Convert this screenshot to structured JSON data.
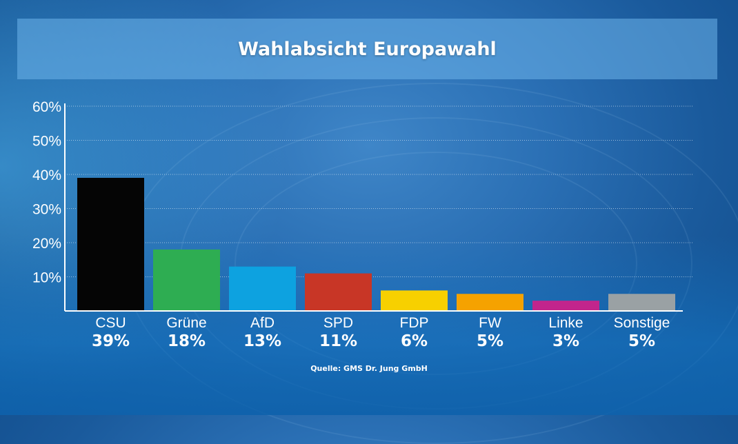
{
  "title": "Wahlabsicht Europawahl",
  "source": "Quelle: GMS Dr. Jung GmbH",
  "chart_data": {
    "type": "bar",
    "title": "Wahlabsicht Europawahl",
    "xlabel": "",
    "ylabel": "",
    "ylim": [
      0,
      60
    ],
    "yticks": [
      10,
      20,
      30,
      40,
      50,
      60
    ],
    "ytick_labels": [
      "10%",
      "20%",
      "30%",
      "40%",
      "50%",
      "60%"
    ],
    "grid": true,
    "legend": "none",
    "categories": [
      "CSU",
      "Grüne",
      "AfD",
      "SPD",
      "FDP",
      "FW",
      "Linke",
      "Sonstige"
    ],
    "values": [
      39,
      18,
      13,
      11,
      6,
      5,
      3,
      5
    ],
    "value_labels": [
      "39%",
      "18%",
      "13%",
      "11%",
      "6%",
      "5%",
      "3%",
      "5%"
    ],
    "colors": [
      "#050505",
      "#2ead52",
      "#0da2e0",
      "#c83626",
      "#f7d000",
      "#f5a200",
      "#c2258c",
      "#9aa1a4"
    ]
  }
}
